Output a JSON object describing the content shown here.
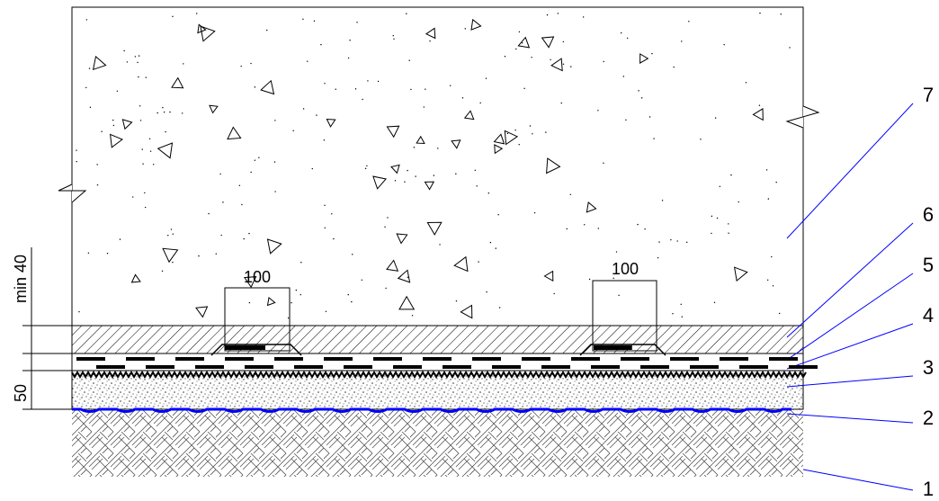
{
  "dimensions": {
    "top_layer": "min 40",
    "sand_layer": "50",
    "overlap_left": "100",
    "overlap_right": "100"
  },
  "callouts": [
    "1",
    "2",
    "3",
    "4",
    "5",
    "6",
    "7"
  ]
}
